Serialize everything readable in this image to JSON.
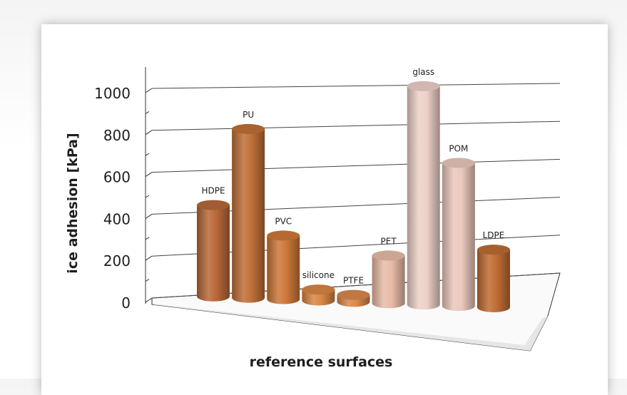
{
  "chart_data": {
    "type": "bar",
    "style": "3d-cylinder",
    "title": "",
    "xlabel": "reference surfaces",
    "ylabel": "ice adhesion [kPa]",
    "ylim": [
      0,
      1000
    ],
    "yticks": [
      0,
      200,
      400,
      600,
      800,
      1000
    ],
    "grid": true,
    "categories": [
      "HDPE",
      "PU",
      "PVC",
      "silicone",
      "PTFE",
      "PET",
      "glass",
      "POM",
      "LDPE"
    ],
    "values": [
      460,
      850,
      320,
      55,
      35,
      240,
      1100,
      720,
      290
    ],
    "colors": [
      "#b8683a",
      "#bf7038",
      "#cc7838",
      "#d88644",
      "#d9884c",
      "#e8bba7",
      "#edd0c8",
      "#ebc8bd",
      "#bf6c34"
    ]
  }
}
